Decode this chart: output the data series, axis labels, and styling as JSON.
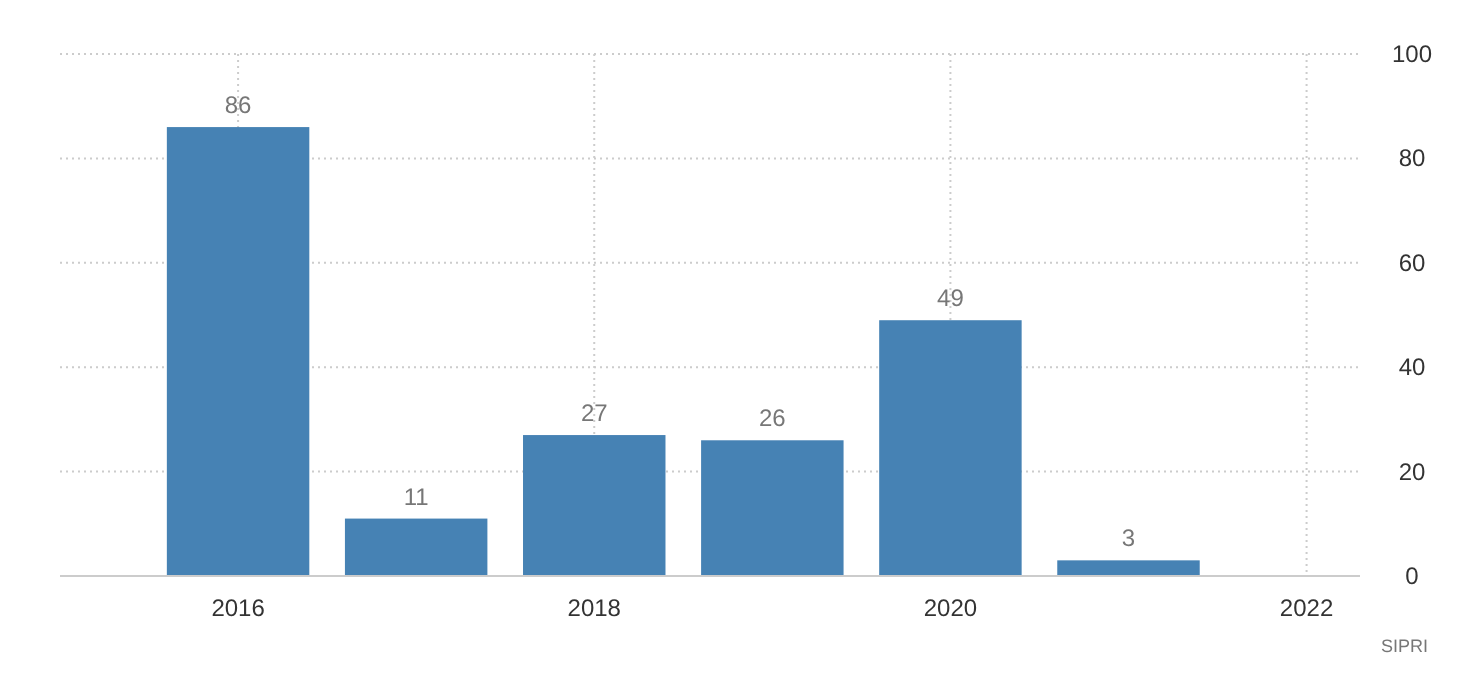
{
  "chart_data": {
    "type": "bar",
    "x": [
      2016,
      2017,
      2018,
      2019,
      2020,
      2021
    ],
    "values": [
      86,
      11,
      27,
      26,
      49,
      3
    ],
    "color": "#4682b4",
    "xlim": [
      2015,
      2022.3
    ],
    "xticks": [
      2016,
      2018,
      2020,
      2022
    ],
    "ylim": [
      0,
      100
    ],
    "yticks": [
      0,
      20,
      40,
      60,
      80,
      100
    ],
    "grid": true,
    "data_labels": true,
    "annotations": [
      "SIPRI"
    ]
  }
}
